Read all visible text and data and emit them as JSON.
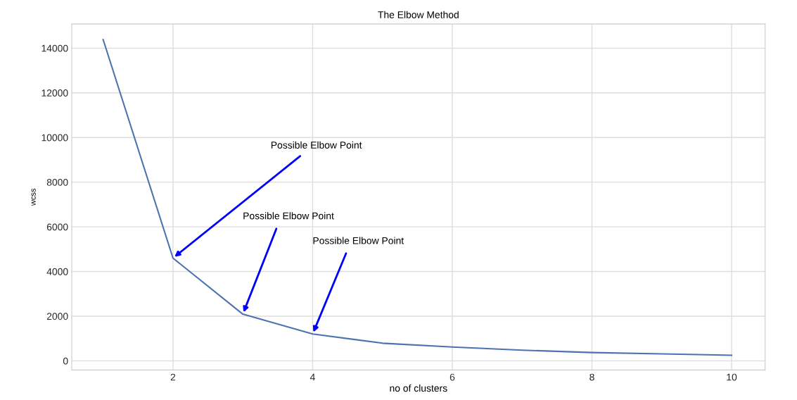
{
  "chart_data": {
    "type": "line",
    "title": "The Elbow Method",
    "xlabel": "no of clusters",
    "ylabel": "wcss",
    "x": [
      1,
      2,
      3,
      4,
      5,
      6,
      7,
      8,
      9,
      10
    ],
    "series": [
      {
        "color": "#4c72b0",
        "values": [
          14380,
          4600,
          2090,
          1200,
          790,
          620,
          480,
          370,
          310,
          250
        ]
      }
    ],
    "xlim": [
      0.55,
      10.48
    ],
    "ylim": [
      -410,
      15080
    ],
    "xticks": [
      2,
      4,
      6,
      8,
      10
    ],
    "yticks": [
      0,
      2000,
      4000,
      6000,
      8000,
      10000,
      12000,
      14000
    ],
    "grid": true,
    "marker": "none",
    "line_style": "solid",
    "annotations": [
      {
        "text": "Possible Elbow Point",
        "x": 2,
        "y": 4600
      },
      {
        "text": "Possible Elbow Point",
        "x": 3,
        "y": 2090
      },
      {
        "text": "Possible Elbow Point",
        "x": 4,
        "y": 1200
      }
    ]
  }
}
